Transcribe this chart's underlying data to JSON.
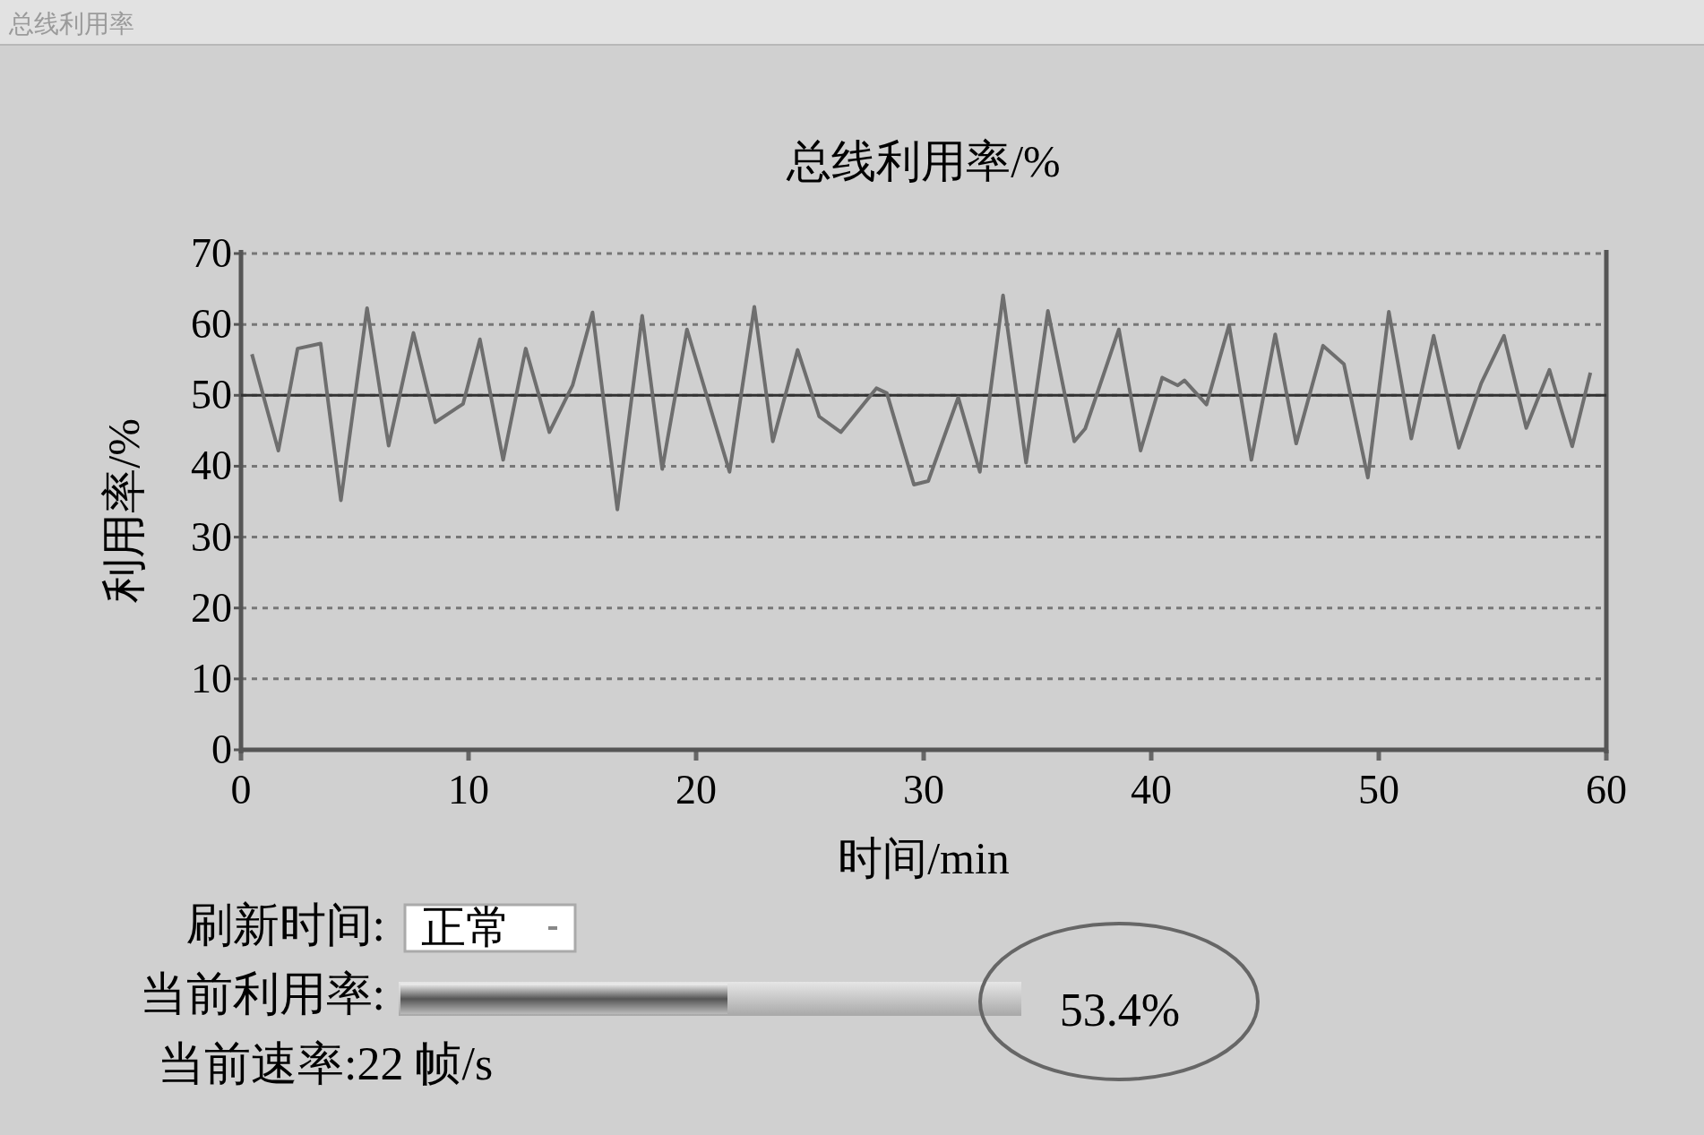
{
  "chart_data": {
    "type": "line",
    "title": "总线利用率/%",
    "xlabel": "时间/min",
    "ylabel": "利用率/%",
    "x": [
      0.48,
      1.64,
      2.49,
      3.5,
      4.39,
      5.54,
      6.49,
      7.58,
      8.54,
      9.76,
      10.5,
      11.52,
      12.51,
      13.55,
      14.57,
      15.45,
      16.54,
      17.63,
      18.51,
      19.6,
      21.47,
      22.56,
      23.37,
      24.46,
      25.41,
      26.36,
      27.92,
      28.38,
      29.57,
      30.2,
      31.52,
      32.47,
      33.49,
      34.5,
      35.46,
      36.62,
      37.1,
      38.58,
      39.53,
      40.48,
      41.17,
      41.46,
      42.43,
      43.42,
      44.4,
      45.45,
      46.37,
      47.55,
      48.47,
      49.52,
      50.44,
      51.43,
      52.41,
      53.52,
      54.5,
      55.5,
      56.48,
      57.5,
      58.5,
      59.3
    ],
    "series": [
      {
        "color": "#6e6e6e",
        "values": [
          55.8,
          42.2,
          56.6,
          57.3,
          35.2,
          62.3,
          42.9,
          58.8,
          46.2,
          48.8,
          57.9,
          40.9,
          56.6,
          44.8,
          51.4,
          61.7,
          33.9,
          61.2,
          39.6,
          59.3,
          39.2,
          62.5,
          43.5,
          56.4,
          47.0,
          44.8,
          51.0,
          50.3,
          37.4,
          37.9,
          49.7,
          39.2,
          64.1,
          40.5,
          61.9,
          43.5,
          45.3,
          59.3,
          42.2,
          52.5,
          51.4,
          52.1,
          48.7,
          59.9,
          40.9,
          58.6,
          43.2,
          57.0,
          54.4,
          38.4,
          61.8,
          43.9,
          58.4,
          42.6,
          51.7,
          58.4,
          45.4,
          53.6,
          42.8,
          53.2
        ]
      }
    ],
    "xlim": [
      0,
      60
    ],
    "xticks": [
      0,
      10,
      20,
      30,
      40,
      50,
      60
    ],
    "ylim": [
      0,
      70
    ],
    "yticks": [
      0,
      10,
      20,
      30,
      40,
      50,
      60,
      70
    ],
    "grid": "y",
    "marker": "none",
    "line_style": "solid",
    "ref_lines": [
      {
        "axis": "y",
        "value": 50,
        "color": "#333333"
      }
    ],
    "annotations": [
      "总线利用率",
      "刷新时间:",
      "正常",
      "当前利用率:",
      "53.4%",
      "当前速率:22 帧/s"
    ]
  }
}
